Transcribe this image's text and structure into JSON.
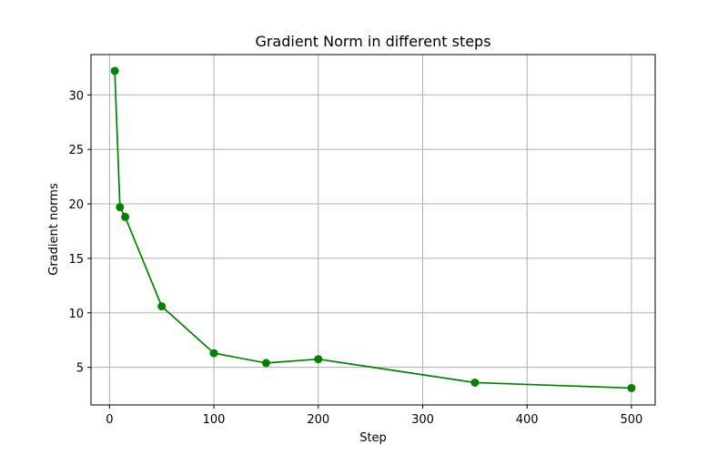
{
  "chart_data": {
    "type": "line",
    "title": "Gradient Norm in different steps",
    "xlabel": "Step",
    "ylabel": "Gradient norms",
    "xlim": [
      -17.75,
      522.75
    ],
    "ylim": [
      1.55,
      33.7
    ],
    "xticks": [
      0,
      100,
      200,
      300,
      400,
      500
    ],
    "yticks": [
      5,
      10,
      15,
      20,
      25,
      30
    ],
    "grid": true,
    "series": [
      {
        "color": "#008000",
        "marker": "circle",
        "x": [
          5,
          10,
          15,
          50,
          100,
          150,
          200,
          350,
          500
        ],
        "y": [
          32.2,
          19.7,
          18.8,
          10.6,
          6.3,
          5.4,
          5.75,
          3.6,
          3.1
        ]
      }
    ]
  }
}
